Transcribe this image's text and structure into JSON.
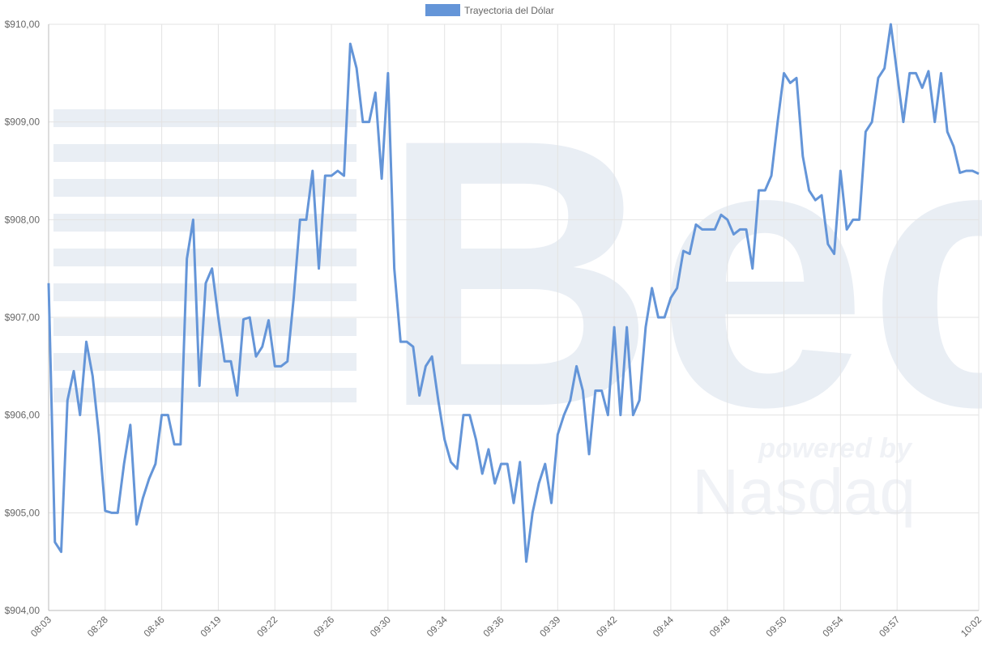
{
  "chart_data": {
    "type": "line",
    "legend": "top",
    "grid": true,
    "categories": [
      "08:03",
      null,
      null,
      null,
      null,
      null,
      null,
      null,
      null,
      "08:28",
      null,
      null,
      null,
      null,
      null,
      null,
      null,
      null,
      "08:46",
      null,
      null,
      null,
      null,
      null,
      null,
      null,
      null,
      "09:19",
      null,
      null,
      null,
      null,
      null,
      null,
      null,
      null,
      "09:22",
      null,
      null,
      null,
      null,
      null,
      null,
      null,
      null,
      "09:26",
      null,
      null,
      null,
      null,
      null,
      null,
      null,
      null,
      "09:30",
      null,
      null,
      null,
      null,
      null,
      null,
      null,
      null,
      "09:34",
      null,
      null,
      null,
      null,
      null,
      null,
      null,
      null,
      "09:36",
      null,
      null,
      null,
      null,
      null,
      null,
      null,
      null,
      "09:39",
      null,
      null,
      null,
      null,
      null,
      null,
      null,
      null,
      "09:42",
      null,
      null,
      null,
      null,
      null,
      null,
      null,
      null,
      "09:44",
      null,
      null,
      null,
      null,
      null,
      null,
      null,
      null,
      "09:48",
      null,
      null,
      null,
      null,
      null,
      null,
      null,
      null,
      "09:50",
      null,
      null,
      null,
      null,
      null,
      null,
      null,
      null,
      "09:54",
      null,
      null,
      null,
      null,
      null,
      null,
      null,
      null,
      "09:57",
      null,
      null,
      null,
      null,
      null,
      null,
      null,
      null,
      null,
      null,
      null,
      null,
      "10:02"
    ],
    "series": [
      {
        "name": "Trayectoria del Dólar",
        "color": "#6495d8",
        "values": [
          907.35,
          904.7,
          904.6,
          906.15,
          906.45,
          906.0,
          906.75,
          906.4,
          905.8,
          905.02,
          905.0,
          905.0,
          905.5,
          905.9,
          904.88,
          905.15,
          905.35,
          905.5,
          906.0,
          906.0,
          905.7,
          905.7,
          907.6,
          908.0,
          906.3,
          907.35,
          907.5,
          907.0,
          906.55,
          906.55,
          906.2,
          906.98,
          907.0,
          906.6,
          906.7,
          906.97,
          906.5,
          906.5,
          906.55,
          907.2,
          908.0,
          908.0,
          908.5,
          907.5,
          908.45,
          908.45,
          908.5,
          908.45,
          909.8,
          909.55,
          909.0,
          909.0,
          909.3,
          908.42,
          909.5,
          907.5,
          906.75,
          906.75,
          906.7,
          906.2,
          906.5,
          906.6,
          906.15,
          905.75,
          905.52,
          905.45,
          906.0,
          906.0,
          905.75,
          905.4,
          905.65,
          905.3,
          905.5,
          905.5,
          905.1,
          905.52,
          904.5,
          905.0,
          905.3,
          905.5,
          905.1,
          905.8,
          906.0,
          906.15,
          906.5,
          906.25,
          905.6,
          906.25,
          906.25,
          906.0,
          906.9,
          906.0,
          906.9,
          906.0,
          906.15,
          906.9,
          907.3,
          907.0,
          907.0,
          907.2,
          907.3,
          907.68,
          907.65,
          907.95,
          907.9,
          907.9,
          907.9,
          908.05,
          908.0,
          907.85,
          907.9,
          907.9,
          907.5,
          908.3,
          908.3,
          908.45,
          909.0,
          909.5,
          909.4,
          909.45,
          908.65,
          908.3,
          908.2,
          908.25,
          907.75,
          907.65,
          908.5,
          907.9,
          908.0,
          908.0,
          908.9,
          909.0,
          909.45,
          909.55,
          910.0,
          909.5,
          909.0,
          909.5,
          909.5,
          909.35,
          909.52,
          909.0,
          909.5,
          908.9,
          908.75,
          908.48,
          908.5,
          908.5,
          908.47
        ]
      }
    ],
    "ylim": [
      904,
      910
    ],
    "yticks": [
      {
        "value": 904,
        "label": "$904,00"
      },
      {
        "value": 905,
        "label": "$905,00"
      },
      {
        "value": 906,
        "label": "$906,00"
      },
      {
        "value": 907,
        "label": "$907,00"
      },
      {
        "value": 908,
        "label": "$908,00"
      },
      {
        "value": 909,
        "label": "$909,00"
      },
      {
        "value": 910,
        "label": "$910,00"
      }
    ]
  },
  "watermark": {
    "logo": "Bec",
    "tagline": "powered by",
    "brand": "Nasdaq"
  }
}
